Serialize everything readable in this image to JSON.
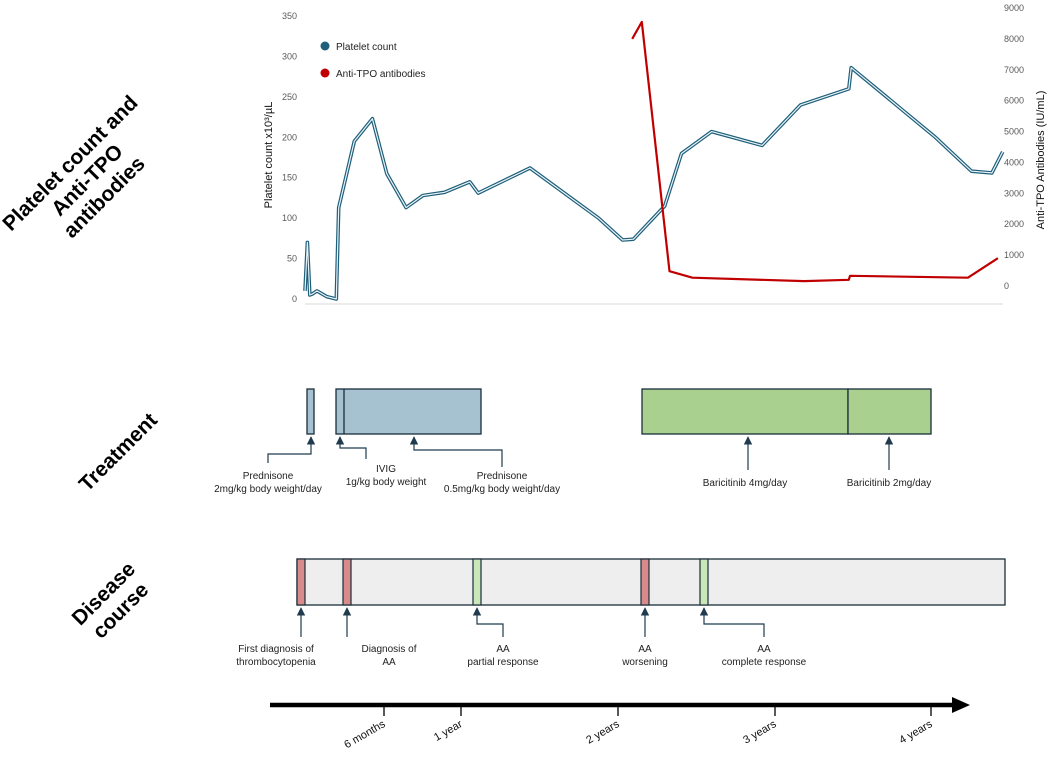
{
  "section_titles": {
    "chart": [
      "Platelet count and",
      "Anti-TPO",
      "antibodies"
    ],
    "treatment": "Treatment",
    "disease": [
      "Disease",
      "course"
    ]
  },
  "colors": {
    "platelet": "#1f5f7a",
    "platelet_inner": "#e9f4f8",
    "anti_tpo": "#c00000",
    "treatment_blue": "#a6c1d0",
    "treatment_green": "#a9d08e",
    "disease_bar": "#eeeeee",
    "event_red": "#d98a8a",
    "event_green": "#c9e7b8"
  },
  "chart_data": {
    "type": "line",
    "xlabel": "",
    "ylabel": "Platelet count x10³/µL",
    "ylabel_right": "Anti-TPO Antibodies (IU/mL)",
    "ylim": [
      0,
      350
    ],
    "ylim_right": [
      0,
      9000
    ],
    "yticks": [
      "0",
      "50",
      "100",
      "150",
      "200",
      "250",
      "300",
      "350"
    ],
    "yticks_right": [
      "0",
      "1000",
      "2000",
      "3000",
      "4000",
      "5000",
      "6000",
      "7000",
      "8000",
      "9000"
    ],
    "x_unit": "months since first diagnosis",
    "legend": [
      "Platelet count",
      "Anti-TPO antibodies"
    ],
    "series": [
      {
        "name": "Platelet count",
        "axis": "left",
        "x": [
          0,
          0.2,
          0.4,
          0.6,
          1.0,
          1.8,
          2.6,
          2.8,
          4.1,
          5.6,
          6.8,
          8.4,
          9.8,
          11.6,
          13.7,
          14.4,
          18.7,
          24.4,
          26.4,
          27.3,
          29.9,
          31.3,
          33.8,
          38.0,
          41.2,
          45.2,
          45.4,
          52.4,
          55.4,
          57.1,
          58.0
        ],
        "values": [
          10,
          70,
          5,
          6,
          10,
          3,
          0,
          113,
          195,
          223,
          155,
          113,
          128,
          132,
          145,
          131,
          162,
          100,
          73,
          74,
          115,
          180,
          207,
          190,
          240,
          260,
          286,
          200,
          158,
          156,
          182
        ]
      },
      {
        "name": "Anti-TPO antibodies",
        "axis": "right",
        "x": [
          27.2,
          28.0,
          30.3,
          32.2,
          41.5,
          45.2,
          45.3,
          55.1,
          57.6
        ],
        "values": [
          8000,
          8550,
          480,
          270,
          160,
          200,
          330,
          270,
          900
        ]
      }
    ]
  },
  "treatments": [
    {
      "name": "Prednisone 2mg/kg",
      "start": 0,
      "end": 0.6,
      "color": "blue"
    },
    {
      "name": "IVIG",
      "start": 2.6,
      "end": 3.2,
      "color": "blue"
    },
    {
      "name": "Prednisone 0.5mg/kg",
      "start": 3.2,
      "end": 14.2,
      "color": "blue"
    },
    {
      "name": "Baricitinib 4mg/day",
      "start": 27.2,
      "end": 44.8,
      "color": "green"
    },
    {
      "name": "Baricitinib 2mg/day",
      "start": 44.8,
      "end": 52.4,
      "color": "green"
    }
  ],
  "treatment_labels": [
    {
      "lines": [
        "Prednisone",
        "2mg/kg body weight/day"
      ]
    },
    {
      "lines": [
        "IVIG",
        "1g/kg body weight"
      ]
    },
    {
      "lines": [
        "Prednisone",
        "0.5mg/kg body weight/day"
      ]
    },
    {
      "lines": [
        "Baricitinib 4mg/day"
      ]
    },
    {
      "lines": [
        "Baricitinib 2mg/day"
      ]
    }
  ],
  "disease_events": [
    {
      "lines": [
        "First diagnosis of",
        "thrombocytopenia"
      ],
      "status": "red"
    },
    {
      "lines": [
        "Diagnosis of",
        "AA"
      ],
      "status": "red"
    },
    {
      "lines": [
        "AA",
        "partial response"
      ],
      "status": "green"
    },
    {
      "lines": [
        "AA",
        "worsening"
      ],
      "status": "red"
    },
    {
      "lines": [
        "AA",
        "complete response"
      ],
      "status": "green"
    }
  ],
  "timeline": [
    "6 months",
    "1 year",
    "2 years",
    "3 years",
    "4 years"
  ]
}
